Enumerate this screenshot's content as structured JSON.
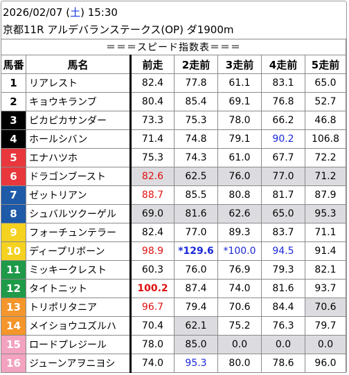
{
  "header": {
    "date": "2026/02/07 (",
    "day": "土",
    "time": ") 15:30",
    "race": "京都11R アルデバランステークス(OP) ダ1900m"
  },
  "table": {
    "title": "＝＝＝スピード指数表＝＝＝",
    "columns": [
      "馬番",
      "馬名",
      "前走",
      "2走前",
      "3走前",
      "4走前",
      "5走前"
    ],
    "rows": [
      {
        "num": "1",
        "name": "リアレスト",
        "v": [
          "82.4",
          "77.8",
          "61.1",
          "83.1",
          "65.0"
        ]
      },
      {
        "num": "2",
        "name": "キョウキランブ",
        "v": [
          "80.4",
          "85.4",
          "69.1",
          "76.8",
          "52.7"
        ]
      },
      {
        "num": "3",
        "name": "ピカピカサンダー",
        "v": [
          "73.3",
          "75.3",
          "78.0",
          "66.2",
          "46.8"
        ]
      },
      {
        "num": "4",
        "name": "ホールシバン",
        "v": [
          "71.4",
          "74.8",
          "79.1",
          "90.2",
          "106.8"
        ]
      },
      {
        "num": "5",
        "name": "エナハツホ",
        "v": [
          "75.3",
          "74.3",
          "61.0",
          "67.7",
          "72.2"
        ]
      },
      {
        "num": "6",
        "name": "ドラゴンブースト",
        "v": [
          "82.6",
          "62.5",
          "76.0",
          "77.0",
          "71.2"
        ]
      },
      {
        "num": "7",
        "name": "ゼットリアン",
        "v": [
          "88.7",
          "85.5",
          "80.8",
          "81.7",
          "87.9"
        ]
      },
      {
        "num": "8",
        "name": "シュバルツクーゲル",
        "v": [
          "69.0",
          "81.6",
          "62.6",
          "65.0",
          "95.3"
        ]
      },
      {
        "num": "9",
        "name": "フォーチュンテラー",
        "v": [
          "82.4",
          "77.0",
          "89.3",
          "83.7",
          "71.1"
        ]
      },
      {
        "num": "10",
        "name": "ディープリボーン",
        "v": [
          "98.9",
          "*129.6",
          "*100.0",
          "94.5",
          "91.4"
        ]
      },
      {
        "num": "11",
        "name": "ミッキークレスト",
        "v": [
          "60.3",
          "76.0",
          "76.9",
          "79.3",
          "82.1"
        ]
      },
      {
        "num": "12",
        "name": "タイトニット",
        "v": [
          "100.2",
          "87.4",
          "74.0",
          "81.6",
          "93.7"
        ]
      },
      {
        "num": "13",
        "name": "トリポリタニア",
        "v": [
          "96.7",
          "79.4",
          "70.6",
          "84.4",
          "70.6"
        ]
      },
      {
        "num": "14",
        "name": "メイショウユズルハ",
        "v": [
          "70.4",
          "62.1",
          "75.2",
          "76.3",
          "79.7"
        ]
      },
      {
        "num": "15",
        "name": "ロードプレジール",
        "v": [
          "78.0",
          "85.0",
          "0.0",
          "0.0",
          "0.0"
        ]
      },
      {
        "num": "16",
        "name": "ジューンアヲニヨシ",
        "v": [
          "74.0",
          "95.3",
          "80.0",
          "78.6",
          "96.0"
        ]
      }
    ]
  },
  "colors": {
    "frame_1": "#ffffff",
    "frame_2": "#000000",
    "frame_3": "#e8383d",
    "frame_4": "#1e5aa8",
    "frame_5": "#f4d21f",
    "frame_6": "#1f9a48",
    "frame_7": "#f4962b",
    "frame_8": "#f3a3bf",
    "highlight_red": "#e01010",
    "highlight_blue": "#1a28d8",
    "gray_cell": "#dcdce0"
  }
}
